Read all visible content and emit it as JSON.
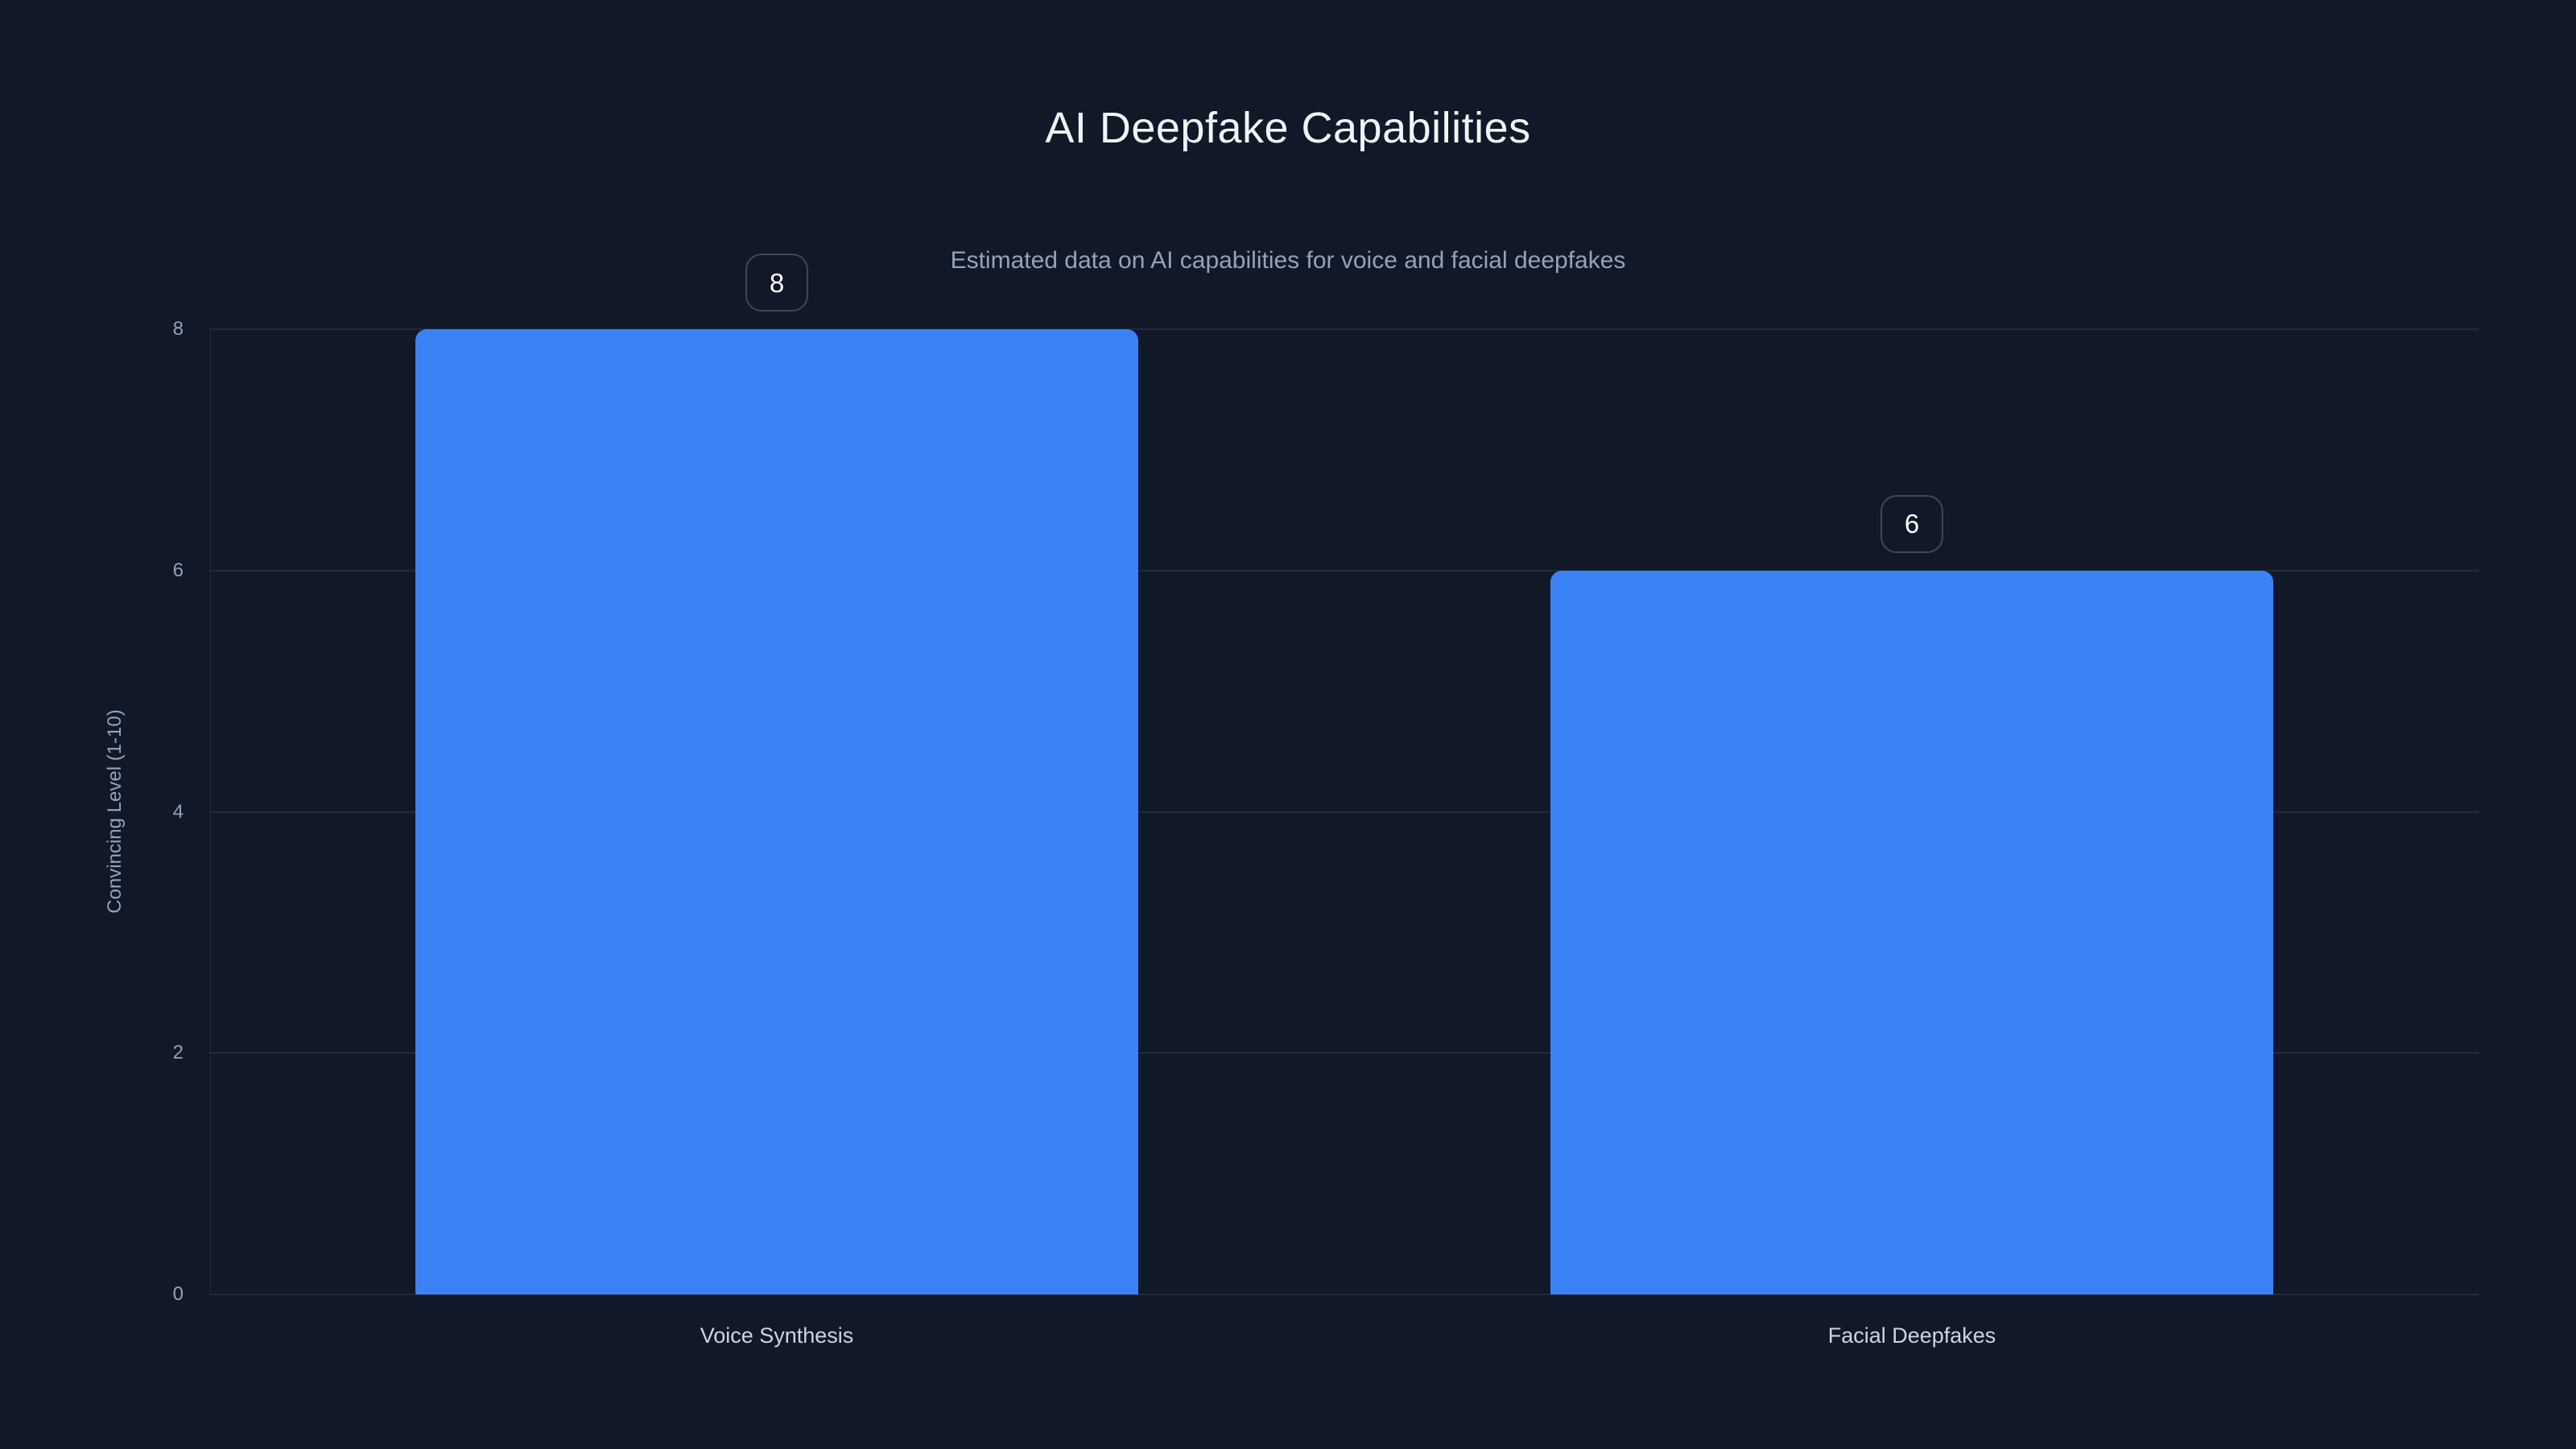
{
  "chart_data": {
    "type": "bar",
    "title": "AI Deepfake Capabilities",
    "subtitle": "Estimated data on AI capabilities for voice and facial deepfakes",
    "categories": [
      "Voice Synthesis",
      "Facial Deepfakes"
    ],
    "values": [
      8,
      6
    ],
    "data_labels": [
      "8",
      "6"
    ],
    "xlabel": "",
    "ylabel": "Convincing Level (1-10)",
    "ylim": [
      0,
      8
    ],
    "yticks": [
      0,
      2,
      4,
      6,
      8
    ],
    "grid": true,
    "legend": false
  },
  "colors": {
    "background": "#111827",
    "bar": "#3b82f6",
    "gridline": "#303a4e",
    "title_text": "#f1f5f9",
    "subtitle_text": "#94a3b8",
    "tick_text": "#94a3b8",
    "category_text": "#cbd5e1",
    "badge_border": "#3e4859",
    "badge_text": "#ffffff"
  }
}
